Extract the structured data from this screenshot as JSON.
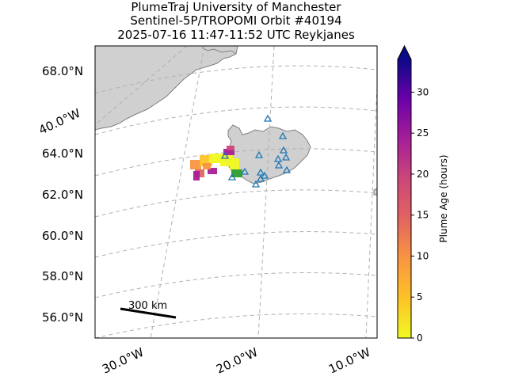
{
  "title": {
    "line1": "PlumeTraj    University of Manchester",
    "line2": "Sentinel-5P/TROPOMI Orbit #40194",
    "line3": "2025-07-16   11:47-11:52 UTC   Reykjanes"
  },
  "map": {
    "lat_labels": [
      "68.0°N",
      "64.0°N",
      "62.0°N",
      "60.0°N",
      "58.0°N",
      "56.0°N"
    ],
    "lon_labels": [
      "40.0°W",
      "30.0°W",
      "20.0°W",
      "10.0°W"
    ],
    "gridlines": true,
    "scale_bar_label": "300 km",
    "land_color": "#d0d0d0",
    "coast_color": "#808080",
    "volcano_marker_color": "#1f77b4"
  },
  "colorbar": {
    "label": "Plume Age (hours)",
    "ticks": [
      "0",
      "5",
      "10",
      "15",
      "20",
      "25",
      "30"
    ],
    "min": 0,
    "max": 34,
    "extend": "max",
    "colormap": "plasma_r"
  }
}
